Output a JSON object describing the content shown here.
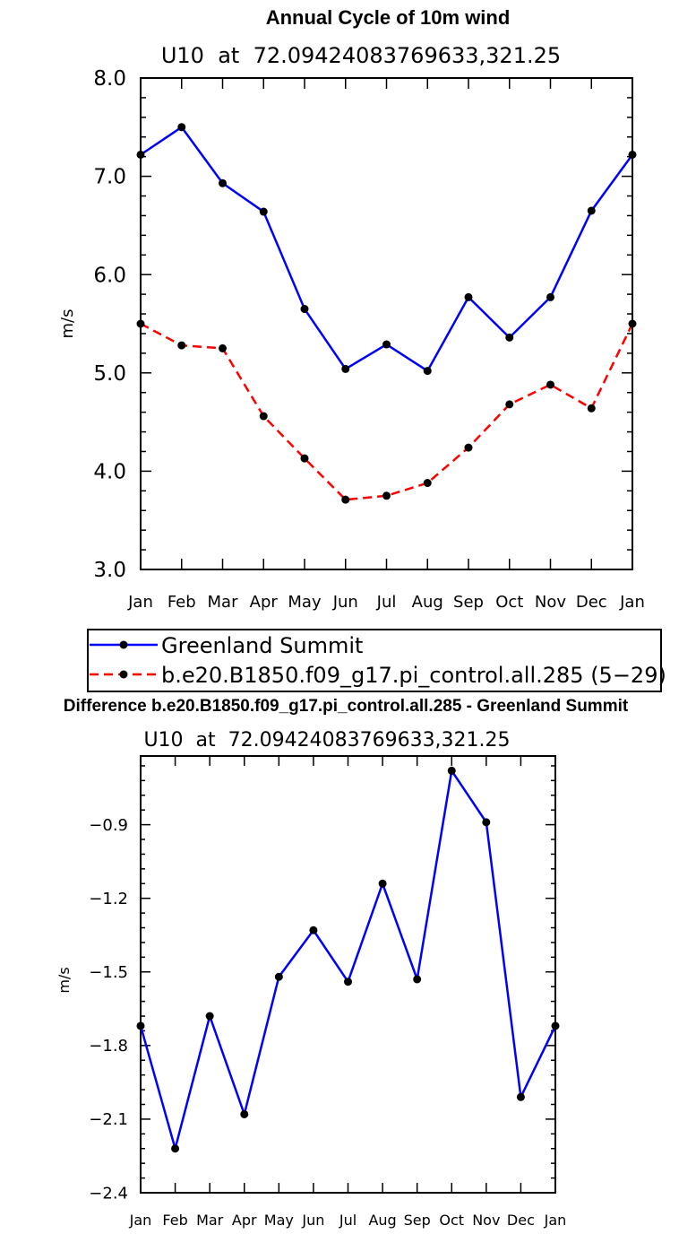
{
  "chart_data": [
    {
      "type": "line",
      "title": "Annual Cycle of 10m wind",
      "subtitle": "U10  at  72.09424083769633,321.25",
      "ylabel": "m/s",
      "xlabel": "",
      "categories": [
        "Jan",
        "Feb",
        "Mar",
        "Apr",
        "May",
        "Jun",
        "Jul",
        "Aug",
        "Sep",
        "Oct",
        "Nov",
        "Dec",
        "Jan"
      ],
      "ylim": [
        3.0,
        8.0
      ],
      "yticks": [
        3.0,
        4.0,
        5.0,
        6.0,
        7.0,
        8.0
      ],
      "ytick_labels": [
        "3.0",
        "4.0",
        "5.0",
        "6.0",
        "7.0",
        "8.0"
      ],
      "series": [
        {
          "name": "Greenland Summit",
          "color": "#0000ff",
          "dash": "solid",
          "values": [
            7.22,
            7.5,
            6.93,
            6.64,
            5.65,
            5.04,
            5.29,
            5.02,
            5.77,
            5.36,
            5.77,
            6.65,
            7.22
          ]
        },
        {
          "name": "b.e20.B1850.f09_g17.pi_control.all.285 (5−29)",
          "color": "#ff0000",
          "dash": "dashed",
          "values": [
            5.5,
            5.28,
            5.25,
            4.56,
            4.13,
            3.71,
            3.75,
            3.88,
            4.24,
            4.68,
            4.88,
            4.64,
            5.5
          ]
        }
      ],
      "legend_position": "bottom"
    },
    {
      "type": "line",
      "title": "Difference b.e20.B1850.f09_g17.pi_control.all.285 - Greenland Summit",
      "subtitle": "U10  at  72.09424083769633,321.25",
      "ylabel": "m/s",
      "xlabel": "",
      "categories": [
        "Jan",
        "Feb",
        "Mar",
        "Apr",
        "May",
        "Jun",
        "Jul",
        "Aug",
        "Sep",
        "Oct",
        "Nov",
        "Dec",
        "Jan"
      ],
      "ylim": [
        -2.4,
        -0.62
      ],
      "yticks": [
        -2.4,
        -2.1,
        -1.8,
        -1.5,
        -1.2,
        -0.9
      ],
      "ytick_labels": [
        "−2.4",
        "−2.1",
        "−1.8",
        "−1.5",
        "−1.2",
        "−0.9"
      ],
      "series": [
        {
          "color": "#0000ff",
          "dash": "solid",
          "values": [
            -1.72,
            -2.22,
            -1.68,
            -2.08,
            -1.52,
            -1.33,
            -1.54,
            -1.14,
            -1.53,
            -0.68,
            -0.89,
            -2.01,
            -1.72
          ]
        }
      ]
    }
  ]
}
